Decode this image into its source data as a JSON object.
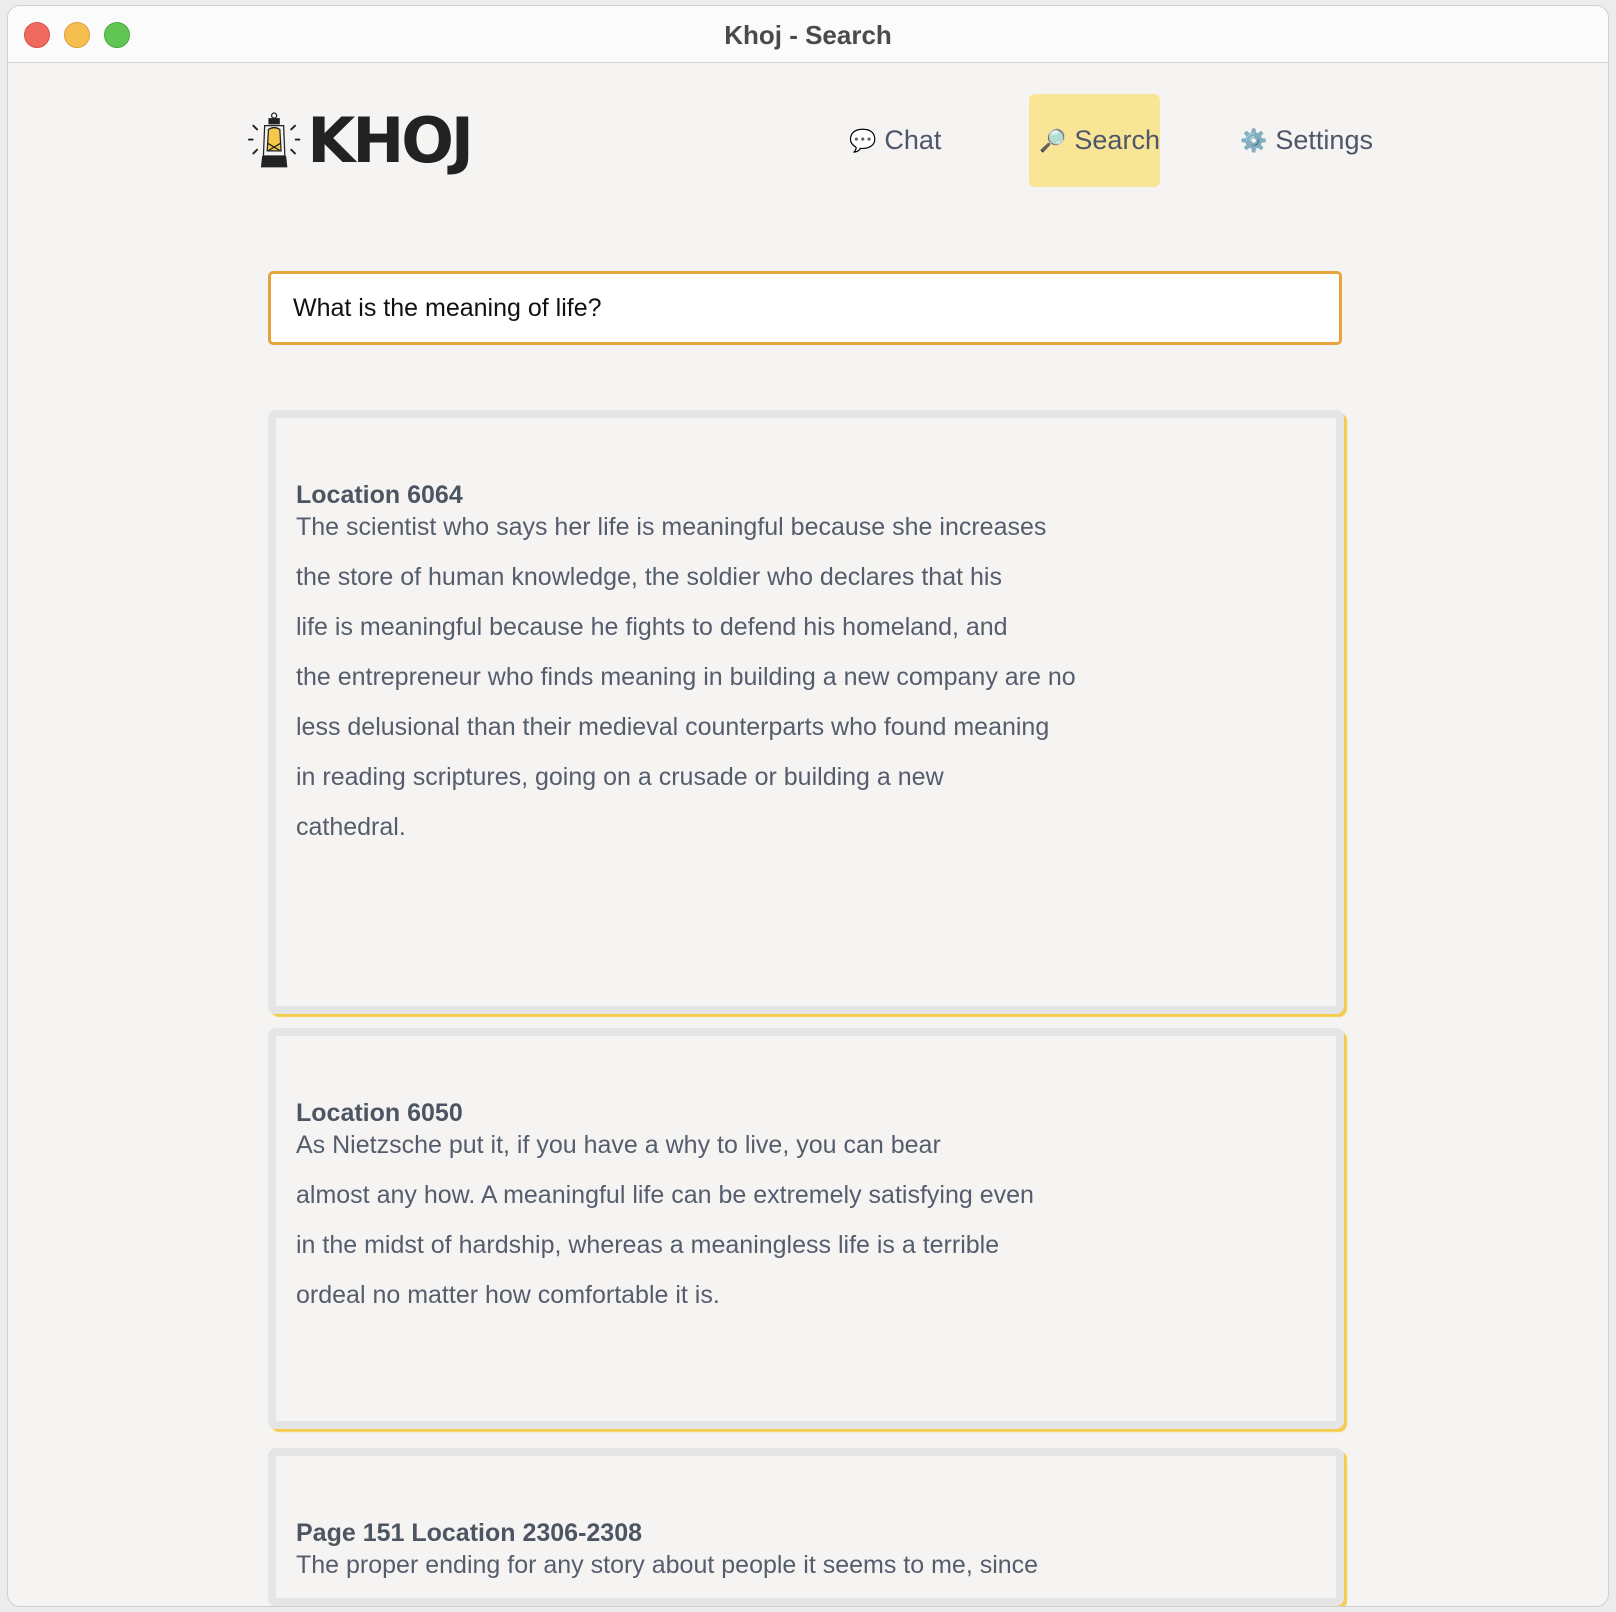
{
  "window": {
    "title": "Khoj - Search"
  },
  "logo": {
    "text": "KHOJ"
  },
  "nav": [
    {
      "label": "Chat",
      "icon": "speech-bubble-icon",
      "glyph": "💬"
    },
    {
      "label": "Search",
      "icon": "magnifier-icon",
      "glyph": "🔎",
      "active": true
    },
    {
      "label": "Settings",
      "icon": "gear-icon",
      "glyph": "⚙️"
    }
  ],
  "search": {
    "value": "What is the meaning of life?"
  },
  "results": [
    {
      "heading": "Location 6064",
      "lines": [
        "The scientist who says her life is meaningful because she increases",
        "the store of human knowledge, the soldier who declares that his",
        "life is meaningful because he fights to defend his homeland, and",
        "the entrepreneur who finds meaning in building a new company are no",
        "less delusional than their medieval counterparts who found meaning",
        "in reading scriptures, going on a crusade or building a new",
        "cathedral."
      ]
    },
    {
      "heading": "Location 6050",
      "lines": [
        "As Nietzsche put it, if you have a why to live, you can bear",
        "almost any how. A meaningful life can be extremely satisfying even",
        "in the midst of hardship, whereas a meaningless life is a terrible",
        "ordeal no matter how comfortable it is."
      ]
    },
    {
      "heading": "Page 151 Location 2306-2308",
      "lines": [
        "The proper ending for any story about people it seems to me, since"
      ]
    }
  ],
  "colors": {
    "accent": "#e8a33c",
    "active_nav": "#f9e596",
    "card_shadow": "#f4cc4e"
  }
}
